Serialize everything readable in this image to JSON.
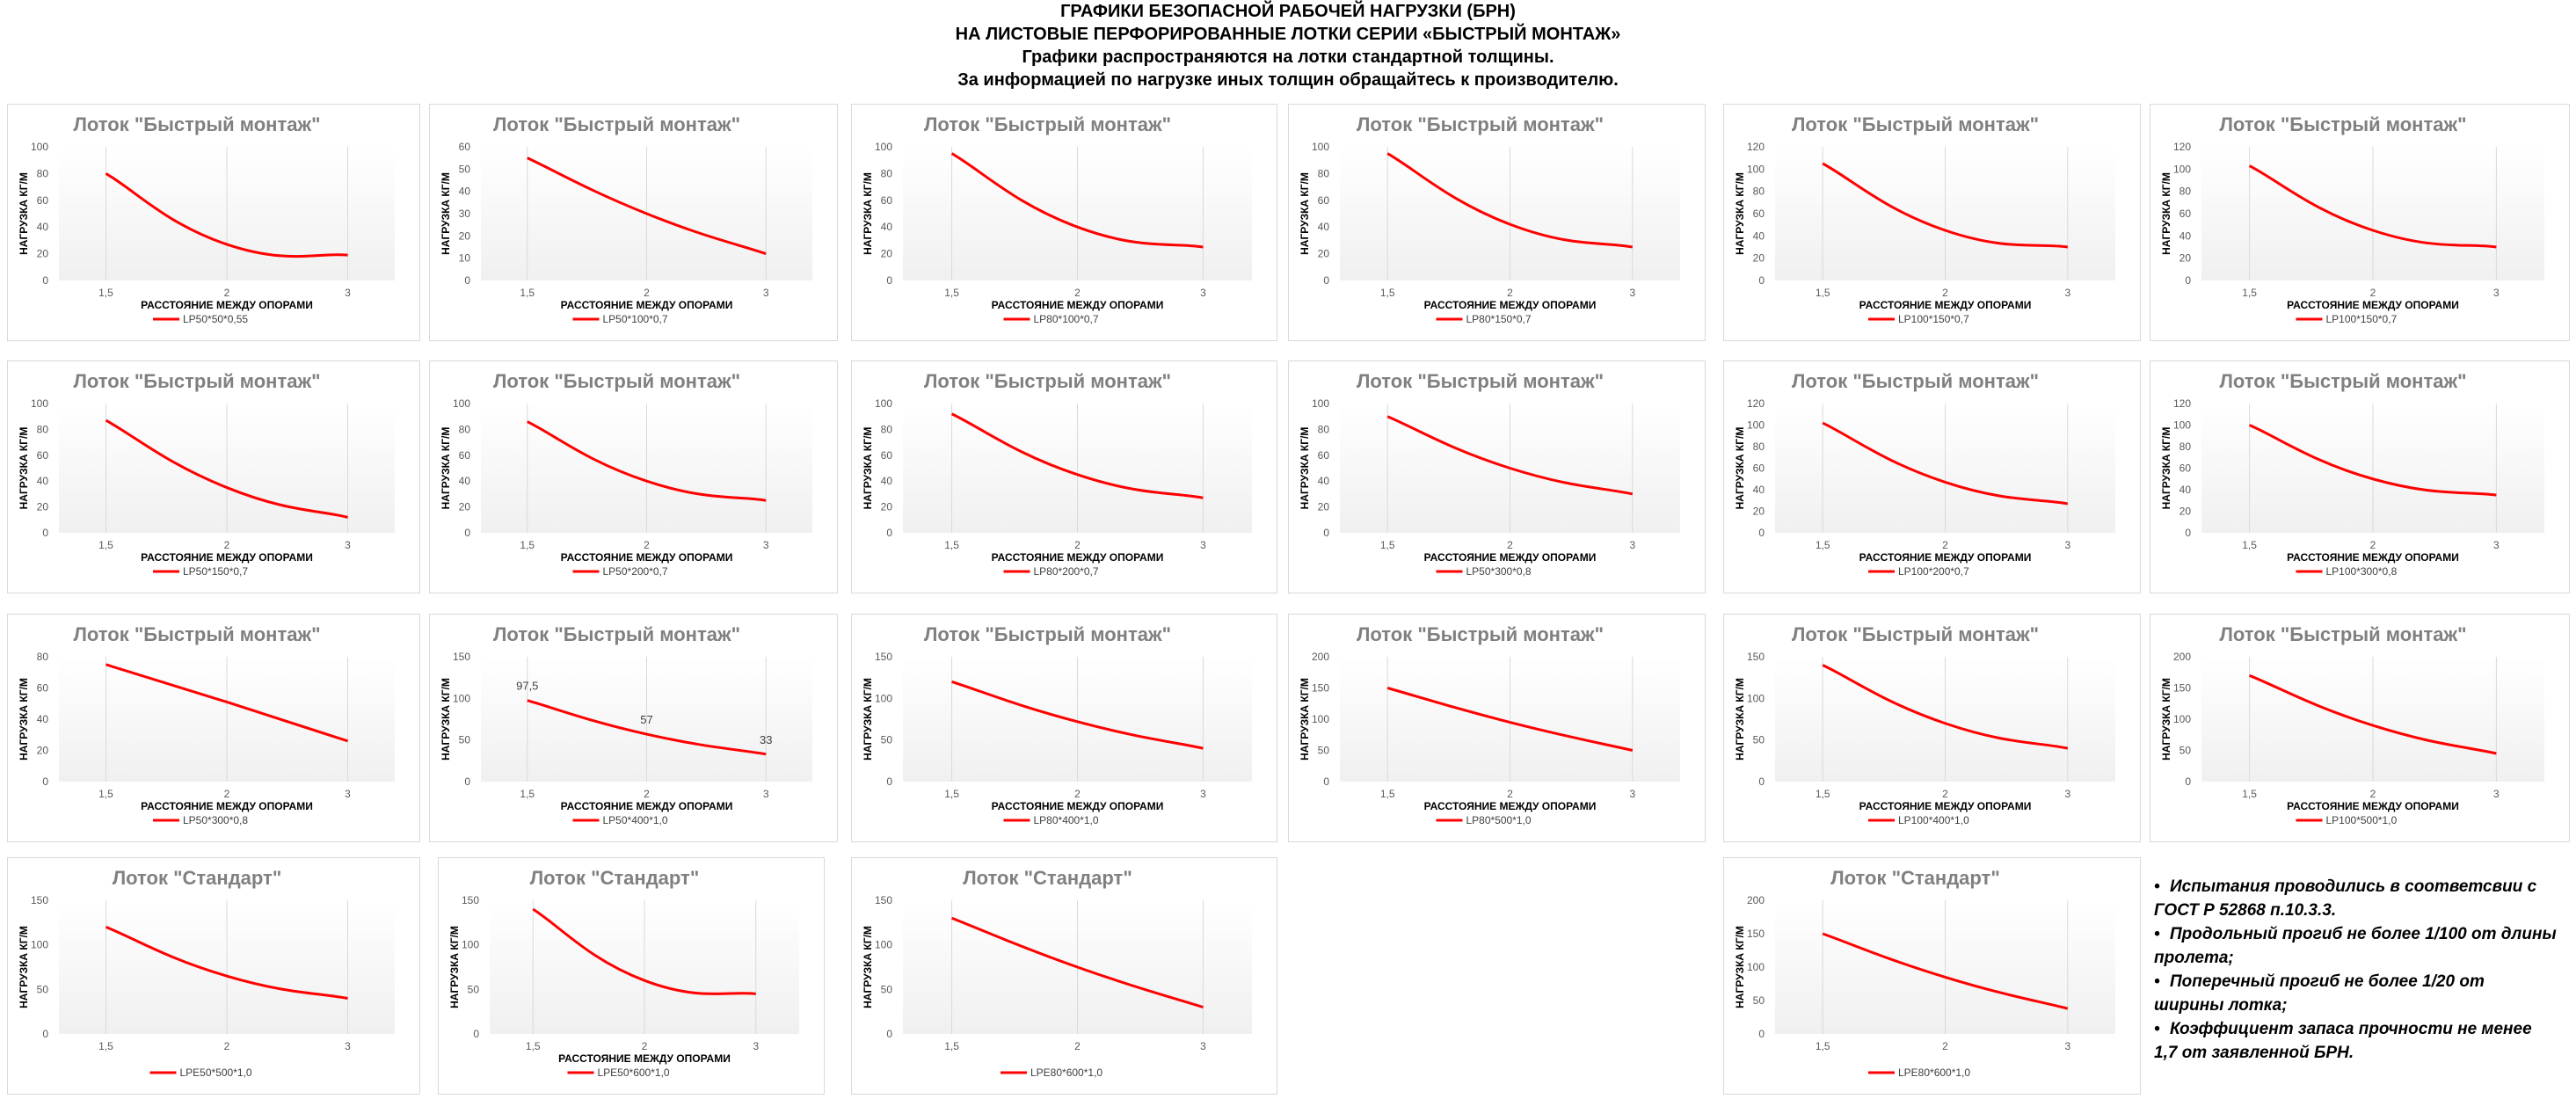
{
  "header": {
    "line1": "ГРАФИКИ БЕЗОПАСНОЙ РАБОЧЕЙ НАГРУЗКИ (БРН)",
    "line2": "НА ЛИСТОВЫЕ ПЕРФОРИРОВАННЫЕ ЛОТКИ СЕРИИ «БЫСТРЫЙ МОНТАЖ»",
    "line3": "Графики распространяются на лотки стандартной толщины.",
    "line4": "За информацией по нагрузке иных толщин обращайтесь к производителю."
  },
  "colors": {
    "series": "#ff0000",
    "gridline": "#d9d9d9",
    "title": "#808080",
    "text": "#000000",
    "plot_fill": "#f0f0f0"
  },
  "notes": [
    "Испытания проводились в соответсвии с ГОСТ Р 52868 п.10.3.3.",
    "Продольный прогиб не более 1/100 от длины пролета;",
    "Поперечный прогиб не более 1/20 от ширины лотка;",
    "Коэффициент запаса прочности не менее 1,7 от заявленной БРН."
  ],
  "bullet": "•",
  "chart_data": [
    {
      "type": "line",
      "title": "Лоток \"Быстрый монтаж\"",
      "xlabel": "РАССТОЯНИЕ МЕЖДУ ОПОРАМИ",
      "ylabel": "НАГРУЗКА КГ/М",
      "categories": [
        "1,5",
        "2",
        "3"
      ],
      "ylim": [
        0,
        100
      ],
      "yticks": [
        0,
        20,
        40,
        60,
        80,
        100
      ],
      "series": [
        {
          "name": "LP50*50*0,55",
          "values": [
            80,
            27,
            19
          ]
        }
      ]
    },
    {
      "type": "line",
      "title": "Лоток \"Быстрый монтаж\"",
      "xlabel": "РАССТОЯНИЕ МЕЖДУ ОПОРАМИ",
      "ylabel": "НАГРУЗКА КГ/М",
      "categories": [
        "1,5",
        "2",
        "3"
      ],
      "ylim": [
        0,
        60
      ],
      "yticks": [
        0,
        10,
        20,
        30,
        40,
        50,
        60
      ],
      "series": [
        {
          "name": "LP50*100*0,7",
          "values": [
            55,
            30,
            12
          ]
        }
      ]
    },
    {
      "type": "line",
      "title": "Лоток \"Быстрый монтаж\"",
      "xlabel": "РАССТОЯНИЕ МЕЖДУ ОПОРАМИ",
      "ylabel": "НАГРУЗКА КГ/М",
      "categories": [
        "1,5",
        "2",
        "3"
      ],
      "ylim": [
        0,
        100
      ],
      "yticks": [
        0,
        20,
        40,
        60,
        80,
        100
      ],
      "series": [
        {
          "name": "LP80*100*0,7",
          "values": [
            95,
            40,
            25
          ]
        }
      ]
    },
    {
      "type": "line",
      "title": "Лоток \"Быстрый монтаж\"",
      "xlabel": "РАССТОЯНИЕ МЕЖДУ ОПОРАМИ",
      "ylabel": "НАГРУЗКА КГ/М",
      "categories": [
        "1,5",
        "2",
        "3"
      ],
      "ylim": [
        0,
        100
      ],
      "yticks": [
        0,
        20,
        40,
        60,
        80,
        100
      ],
      "series": [
        {
          "name": "LP80*150*0,7",
          "values": [
            95,
            42,
            25
          ]
        }
      ]
    },
    {
      "type": "line",
      "title": "Лоток \"Быстрый монтаж\"",
      "xlabel": "РАССТОЯНИЕ МЕЖДУ ОПОРАМИ",
      "ylabel": "НАГРУЗКА КГ/М",
      "categories": [
        "1,5",
        "2",
        "3"
      ],
      "ylim": [
        0,
        120
      ],
      "yticks": [
        0,
        20,
        40,
        60,
        80,
        100,
        120
      ],
      "series": [
        {
          "name": "LP100*150*0,7",
          "values": [
            105,
            45,
            30
          ]
        }
      ]
    },
    {
      "type": "line",
      "title": "Лоток \"Быстрый монтаж\"",
      "xlabel": "РАССТОЯНИЕ МЕЖДУ ОПОРАМИ",
      "ylabel": "НАГРУЗКА КГ/М",
      "categories": [
        "1,5",
        "2",
        "3"
      ],
      "ylim": [
        0,
        120
      ],
      "yticks": [
        0,
        20,
        40,
        60,
        80,
        100,
        120
      ],
      "series": [
        {
          "name": "LP100*150*0,7",
          "values": [
            103,
            45,
            30
          ]
        }
      ]
    },
    {
      "type": "line",
      "title": "Лоток \"Быстрый монтаж\"",
      "xlabel": "РАССТОЯНИЕ МЕЖДУ ОПОРАМИ",
      "ylabel": "НАГРУЗКА КГ/М",
      "categories": [
        "1,5",
        "2",
        "3"
      ],
      "ylim": [
        0,
        100
      ],
      "yticks": [
        0,
        20,
        40,
        60,
        80,
        100
      ],
      "series": [
        {
          "name": "LP50*150*0,7",
          "values": [
            87,
            35,
            12
          ]
        }
      ]
    },
    {
      "type": "line",
      "title": "Лоток \"Быстрый монтаж\"",
      "xlabel": "РАССТОЯНИЕ МЕЖДУ ОПОРАМИ",
      "ylabel": "НАГРУЗКА КГ/М",
      "categories": [
        "1,5",
        "2",
        "3"
      ],
      "ylim": [
        0,
        100
      ],
      "yticks": [
        0,
        20,
        40,
        60,
        80,
        100
      ],
      "series": [
        {
          "name": "LP50*200*0,7",
          "values": [
            86,
            40,
            25
          ]
        }
      ]
    },
    {
      "type": "line",
      "title": "Лоток \"Быстрый монтаж\"",
      "xlabel": "РАССТОЯНИЕ МЕЖДУ ОПОРАМИ",
      "ylabel": "НАГРУЗКА КГ/М",
      "categories": [
        "1,5",
        "2",
        "3"
      ],
      "ylim": [
        0,
        100
      ],
      "yticks": [
        0,
        20,
        40,
        60,
        80,
        100
      ],
      "series": [
        {
          "name": "LP80*200*0,7",
          "values": [
            92,
            45,
            27
          ]
        }
      ]
    },
    {
      "type": "line",
      "title": "Лоток \"Быстрый монтаж\"",
      "xlabel": "РАССТОЯНИЕ МЕЖДУ ОПОРАМИ",
      "ylabel": "НАГРУЗКА КГ/М",
      "categories": [
        "1,5",
        "2",
        "3"
      ],
      "ylim": [
        0,
        100
      ],
      "yticks": [
        0,
        20,
        40,
        60,
        80,
        100
      ],
      "series": [
        {
          "name": "LP50*300*0,8",
          "values": [
            90,
            50,
            30
          ]
        }
      ]
    },
    {
      "type": "line",
      "title": "Лоток \"Быстрый монтаж\"",
      "xlabel": "РАССТОЯНИЕ МЕЖДУ ОПОРАМИ",
      "ylabel": "НАГРУЗКА КГ/М",
      "categories": [
        "1,5",
        "2",
        "3"
      ],
      "ylim": [
        0,
        120
      ],
      "yticks": [
        0,
        20,
        40,
        60,
        80,
        100,
        120
      ],
      "series": [
        {
          "name": "LP100*200*0,7",
          "values": [
            102,
            47,
            27
          ]
        }
      ]
    },
    {
      "type": "line",
      "title": "Лоток \"Быстрый монтаж\"",
      "xlabel": "РАССТОЯНИЕ МЕЖДУ ОПОРАМИ",
      "ylabel": "НАГРУЗКА КГ/М",
      "categories": [
        "1,5",
        "2",
        "3"
      ],
      "ylim": [
        0,
        120
      ],
      "yticks": [
        0,
        20,
        40,
        60,
        80,
        100,
        120
      ],
      "series": [
        {
          "name": "LP100*300*0,8",
          "values": [
            100,
            50,
            35
          ]
        }
      ]
    },
    {
      "type": "line",
      "title": "Лоток \"Быстрый монтаж\"",
      "xlabel": "РАССТОЯНИЕ МЕЖДУ ОПОРАМИ",
      "ylabel": "НАГРУЗКА КГ/М",
      "categories": [
        "1,5",
        "2",
        "3"
      ],
      "ylim": [
        0,
        80
      ],
      "yticks": [
        0,
        20,
        40,
        60,
        80
      ],
      "series": [
        {
          "name": "LP50*300*0,8",
          "values": [
            75,
            51,
            26
          ]
        }
      ]
    },
    {
      "type": "line",
      "title": "Лоток \"Быстрый монтаж\"",
      "xlabel": "РАССТОЯНИЕ МЕЖДУ ОПОРАМИ",
      "ylabel": "НАГРУЗКА КГ/М",
      "categories": [
        "1,5",
        "2",
        "3"
      ],
      "ylim": [
        0,
        150
      ],
      "yticks": [
        0,
        50,
        100,
        150
      ],
      "series": [
        {
          "name": "LP50*400*1,0",
          "values": [
            97.5,
            57,
            33
          ]
        }
      ],
      "data_labels": [
        "97,5",
        "57",
        "33"
      ]
    },
    {
      "type": "line",
      "title": "Лоток \"Быстрый монтаж\"",
      "xlabel": "РАССТОЯНИЕ МЕЖДУ ОПОРАМИ",
      "ylabel": "НАГРУЗКА КГ/М",
      "categories": [
        "1,5",
        "2",
        "3"
      ],
      "ylim": [
        0,
        150
      ],
      "yticks": [
        0,
        50,
        100,
        150
      ],
      "series": [
        {
          "name": "LP80*400*1,0",
          "values": [
            120,
            72,
            40
          ]
        }
      ]
    },
    {
      "type": "line",
      "title": "Лоток \"Быстрый монтаж\"",
      "xlabel": "РАССТОЯНИЕ МЕЖДУ ОПОРАМИ",
      "ylabel": "НАГРУЗКА КГ/М",
      "categories": [
        "1,5",
        "2",
        "3"
      ],
      "ylim": [
        0,
        200
      ],
      "yticks": [
        0,
        50,
        100,
        150,
        200
      ],
      "series": [
        {
          "name": "LP80*500*1,0",
          "values": [
            150,
            95,
            50
          ]
        }
      ]
    },
    {
      "type": "line",
      "title": "Лоток \"Быстрый монтаж\"",
      "xlabel": "РАССТОЯНИЕ МЕЖДУ ОПОРАМИ",
      "ylabel": "НАГРУЗКА КГ/М",
      "categories": [
        "1,5",
        "2",
        "3"
      ],
      "ylim": [
        0,
        150
      ],
      "yticks": [
        0,
        50,
        100,
        150
      ],
      "series": [
        {
          "name": "LP100*400*1,0",
          "values": [
            140,
            70,
            40
          ]
        }
      ]
    },
    {
      "type": "line",
      "title": "Лоток \"Быстрый монтаж\"",
      "xlabel": "РАССТОЯНИЕ МЕЖДУ ОПОРАМИ",
      "ylabel": "НАГРУЗКА КГ/М",
      "categories": [
        "1,5",
        "2",
        "3"
      ],
      "ylim": [
        0,
        200
      ],
      "yticks": [
        0,
        50,
        100,
        150,
        200
      ],
      "series": [
        {
          "name": "LP100*500*1,0",
          "values": [
            170,
            90,
            45
          ]
        }
      ]
    },
    {
      "type": "line",
      "title": "Лоток \"Стандарт\"",
      "xlabel": "",
      "ylabel": "НАГРУЗКА КГ/М",
      "categories": [
        "1,5",
        "2",
        "3"
      ],
      "ylim": [
        0,
        150
      ],
      "yticks": [
        0,
        50,
        100,
        150
      ],
      "series": [
        {
          "name": "LPE50*500*1,0",
          "values": [
            120,
            65,
            40
          ]
        }
      ]
    },
    {
      "type": "line",
      "title": "Лоток \"Стандарт\"",
      "xlabel": "РАССТОЯНИЕ МЕЖДУ ОПОРАМИ",
      "ylabel": "НАГРУЗКА КГ/М",
      "categories": [
        "1,5",
        "2",
        "3"
      ],
      "ylim": [
        0,
        150
      ],
      "yticks": [
        0,
        50,
        100,
        150
      ],
      "series": [
        {
          "name": "LPE50*600*1,0",
          "values": [
            140,
            60,
            45
          ]
        }
      ]
    },
    {
      "type": "line",
      "title": "Лоток \"Стандарт\"",
      "xlabel": "",
      "ylabel": "НАГРУЗКА КГ/М",
      "categories": [
        "1,5",
        "2",
        "3"
      ],
      "ylim": [
        0,
        150
      ],
      "yticks": [
        0,
        50,
        100,
        150
      ],
      "series": [
        {
          "name": "LPE80*600*1,0",
          "values": [
            130,
            75,
            30
          ]
        }
      ]
    },
    {
      "type": "line",
      "title": "Лоток \"Стандарт\"",
      "xlabel": "",
      "ylabel": "НАГРУЗКА КГ/М",
      "categories": [
        "1,5",
        "2",
        "3"
      ],
      "ylim": [
        0,
        200
      ],
      "yticks": [
        0,
        50,
        100,
        150,
        200
      ],
      "series": [
        {
          "name": "LPE80*600*1,0",
          "values": [
            150,
            85,
            38
          ]
        }
      ]
    }
  ]
}
